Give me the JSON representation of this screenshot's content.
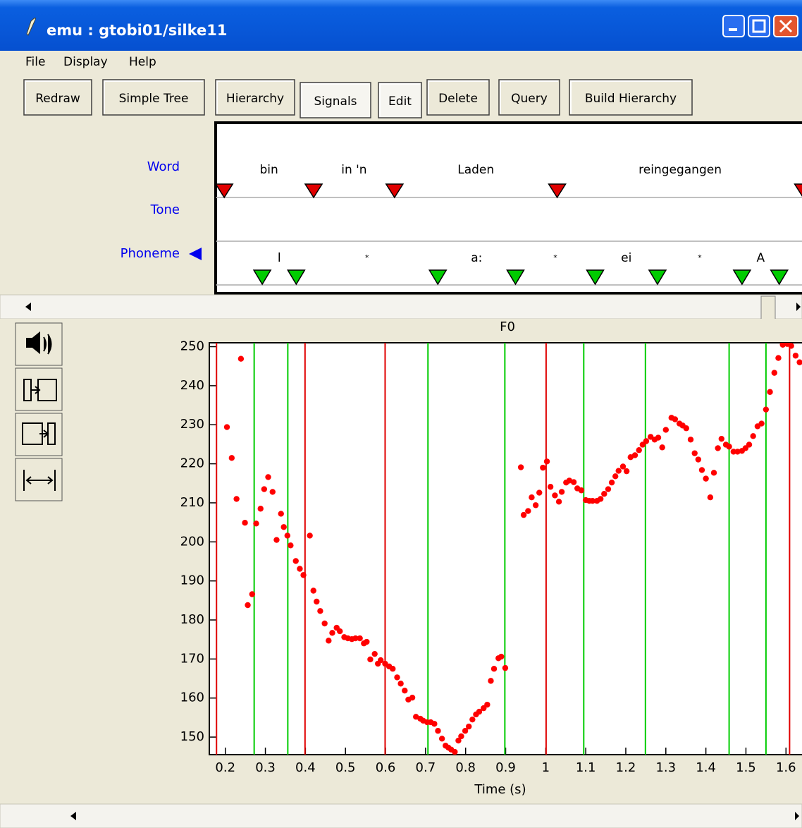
{
  "window": {
    "title": "emu : gtobi01/silke11"
  },
  "menu": [
    "File",
    "Display",
    "Help"
  ],
  "toolbar": [
    "Redraw",
    "Simple Tree",
    "Hierarchy",
    "Signals",
    "Edit",
    "Delete",
    "Query",
    "Build Hierarchy"
  ],
  "tiers": {
    "labels": [
      "Word",
      "Tone",
      "Phoneme"
    ],
    "word_boundaries": [
      0.178,
      0.399,
      0.599,
      1.001,
      1.609
    ],
    "words": [
      "bin",
      "in 'n",
      "Laden",
      "reingegangen"
    ],
    "phoneme_boundaries": [
      0.272,
      0.356,
      0.706,
      0.898,
      1.095,
      1.249,
      1.458,
      1.55
    ],
    "phonemes": [
      "l",
      "*",
      "a:",
      "*",
      "ei",
      "*",
      "A"
    ],
    "word_color": "#e00000",
    "phoneme_color": "#00cc00"
  },
  "chart_data": {
    "type": "scatter",
    "title": "F0",
    "x_label": "Time (s)",
    "color": "#ff0000",
    "x": [
      0.204,
      0.216,
      0.228,
      0.239,
      0.249,
      0.256,
      0.267,
      0.277,
      0.288,
      0.297,
      0.307,
      0.318,
      0.328,
      0.339,
      0.346,
      0.355,
      0.363,
      0.376,
      0.386,
      0.395,
      0.411,
      0.42,
      0.428,
      0.437,
      0.448,
      0.458,
      0.467,
      0.478,
      0.486,
      0.497,
      0.506,
      0.516,
      0.525,
      0.536,
      0.546,
      0.553,
      0.562,
      0.573,
      0.581,
      0.588,
      0.599,
      0.609,
      0.618,
      0.629,
      0.638,
      0.648,
      0.657,
      0.667,
      0.676,
      0.687,
      0.694,
      0.704,
      0.713,
      0.722,
      0.731,
      0.741,
      0.75,
      0.757,
      0.764,
      0.773,
      0.782,
      0.789,
      0.799,
      0.808,
      0.817,
      0.826,
      0.834,
      0.845,
      0.854,
      0.863,
      0.871,
      0.882,
      0.889,
      0.899,
      0.938,
      0.945,
      0.956,
      0.965,
      0.975,
      0.984,
      0.993,
      1.003,
      1.012,
      1.023,
      1.033,
      1.04,
      1.051,
      1.059,
      1.07,
      1.079,
      1.089,
      1.1,
      1.109,
      1.117,
      1.128,
      1.137,
      1.146,
      1.156,
      1.165,
      1.174,
      1.182,
      1.193,
      1.202,
      1.212,
      1.223,
      1.233,
      1.242,
      1.251,
      1.262,
      1.272,
      1.281,
      1.291,
      1.3,
      1.314,
      1.323,
      1.334,
      1.342,
      1.351,
      1.362,
      1.372,
      1.381,
      1.39,
      1.4,
      1.411,
      1.42,
      1.43,
      1.439,
      1.45,
      1.458,
      1.469,
      1.479,
      1.49,
      1.499,
      1.508,
      1.518,
      1.529,
      1.539,
      1.55,
      1.56,
      1.571,
      1.581,
      1.592,
      1.603,
      1.613,
      1.624,
      1.634
    ],
    "values": [
      229.4,
      221.5,
      211.0,
      246.9,
      204.9,
      183.8,
      186.6,
      204.7,
      208.5,
      213.5,
      216.6,
      212.8,
      200.5,
      207.2,
      203.8,
      201.6,
      199.1,
      195.1,
      193.1,
      191.5,
      201.6,
      187.5,
      184.7,
      182.3,
      179.1,
      174.7,
      176.7,
      178.0,
      177.1,
      175.6,
      175.3,
      175.1,
      175.3,
      175.3,
      174.0,
      174.4,
      169.9,
      171.3,
      168.8,
      169.7,
      168.8,
      168.1,
      167.5,
      165.3,
      163.7,
      161.9,
      159.6,
      160.1,
      155.2,
      154.7,
      154.2,
      153.8,
      153.8,
      153.4,
      151.6,
      149.6,
      147.8,
      147.3,
      146.8,
      146.2,
      149.1,
      150.2,
      151.6,
      152.7,
      154.5,
      155.8,
      156.5,
      157.4,
      158.3,
      164.4,
      167.5,
      170.2,
      170.6,
      167.7,
      219.1,
      206.9,
      207.9,
      211.4,
      209.4,
      212.6,
      219.0,
      220.6,
      214.1,
      211.9,
      210.3,
      212.8,
      215.2,
      215.7,
      215.3,
      213.7,
      213.2,
      210.7,
      210.5,
      210.5,
      210.5,
      211.0,
      212.3,
      213.5,
      215.2,
      216.8,
      218.2,
      219.3,
      218.1,
      221.7,
      222.2,
      223.5,
      224.9,
      225.8,
      226.9,
      226.2,
      226.7,
      224.2,
      228.7,
      231.8,
      231.4,
      230.3,
      229.8,
      229.1,
      226.2,
      222.7,
      221.1,
      218.4,
      216.2,
      211.4,
      217.7,
      224.0,
      226.4,
      224.9,
      224.4,
      223.1,
      223.1,
      223.3,
      224.0,
      224.9,
      227.1,
      229.6,
      230.3,
      233.9,
      238.4,
      243.3,
      247.1,
      250.5,
      250.7,
      250.2,
      247.7,
      246.0
    ],
    "xlim": [
      0.16,
      1.64
    ],
    "ylim": [
      145.5,
      251
    ],
    "xticks": [
      0.2,
      0.3,
      0.4,
      0.5,
      0.6,
      0.7,
      0.8,
      0.9,
      1,
      1.1,
      1.2,
      1.3,
      1.4,
      1.5,
      1.6
    ],
    "yticks": [
      150,
      160,
      170,
      180,
      190,
      200,
      210,
      220,
      230,
      240,
      250
    ]
  }
}
